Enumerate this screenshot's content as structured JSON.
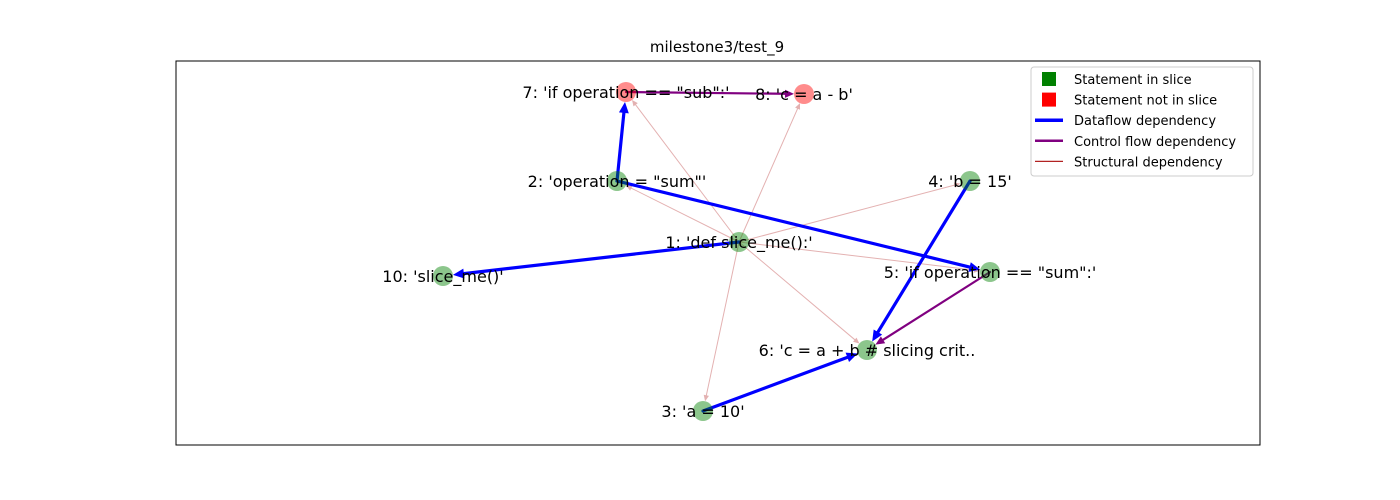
{
  "title": "milestone3/test_9",
  "colors": {
    "in_slice": "#008000",
    "not_in_slice": "#ff0000",
    "dataflow": "#0000ff",
    "control": "#800080",
    "structural": "#b22222"
  },
  "nodes": [
    {
      "id": "1",
      "label": "1: 'def slice_me():'",
      "in_slice": true
    },
    {
      "id": "2",
      "label": "2: 'operation = \"sum\"'",
      "in_slice": true
    },
    {
      "id": "3",
      "label": "3: 'a = 10'",
      "in_slice": true
    },
    {
      "id": "4",
      "label": "4: 'b = 15'",
      "in_slice": true
    },
    {
      "id": "5",
      "label": "5: 'if operation == \"sum\":'",
      "in_slice": true
    },
    {
      "id": "6",
      "label": "6: 'c = a + b # slicing crit..",
      "in_slice": true
    },
    {
      "id": "7",
      "label": "7: 'if operation == \"sub\":'",
      "in_slice": false
    },
    {
      "id": "8",
      "label": "8: 'c = a - b'",
      "in_slice": false
    },
    {
      "id": "10",
      "label": "10: 'slice_me()'",
      "in_slice": true
    }
  ],
  "edges": [
    {
      "from": "1",
      "to": "2",
      "type": "structural"
    },
    {
      "from": "1",
      "to": "3",
      "type": "structural"
    },
    {
      "from": "1",
      "to": "4",
      "type": "structural"
    },
    {
      "from": "1",
      "to": "5",
      "type": "structural"
    },
    {
      "from": "1",
      "to": "6",
      "type": "structural"
    },
    {
      "from": "1",
      "to": "7",
      "type": "structural"
    },
    {
      "from": "1",
      "to": "8",
      "type": "structural"
    },
    {
      "from": "1",
      "to": "10",
      "type": "dataflow"
    },
    {
      "from": "2",
      "to": "5",
      "type": "dataflow"
    },
    {
      "from": "2",
      "to": "7",
      "type": "dataflow"
    },
    {
      "from": "3",
      "to": "6",
      "type": "dataflow"
    },
    {
      "from": "4",
      "to": "6",
      "type": "dataflow"
    },
    {
      "from": "5",
      "to": "6",
      "type": "control"
    },
    {
      "from": "7",
      "to": "8",
      "type": "control"
    }
  ],
  "legend": [
    {
      "label": "Statement in slice",
      "kind": "square",
      "color_key": "in_slice"
    },
    {
      "label": "Statement not in slice",
      "kind": "square",
      "color_key": "not_in_slice"
    },
    {
      "label": "Dataflow dependency",
      "kind": "line",
      "color_key": "dataflow"
    },
    {
      "label": "Control flow dependency",
      "kind": "line",
      "color_key": "control"
    },
    {
      "label": "Structural dependency",
      "kind": "line",
      "color_key": "structural"
    }
  ]
}
